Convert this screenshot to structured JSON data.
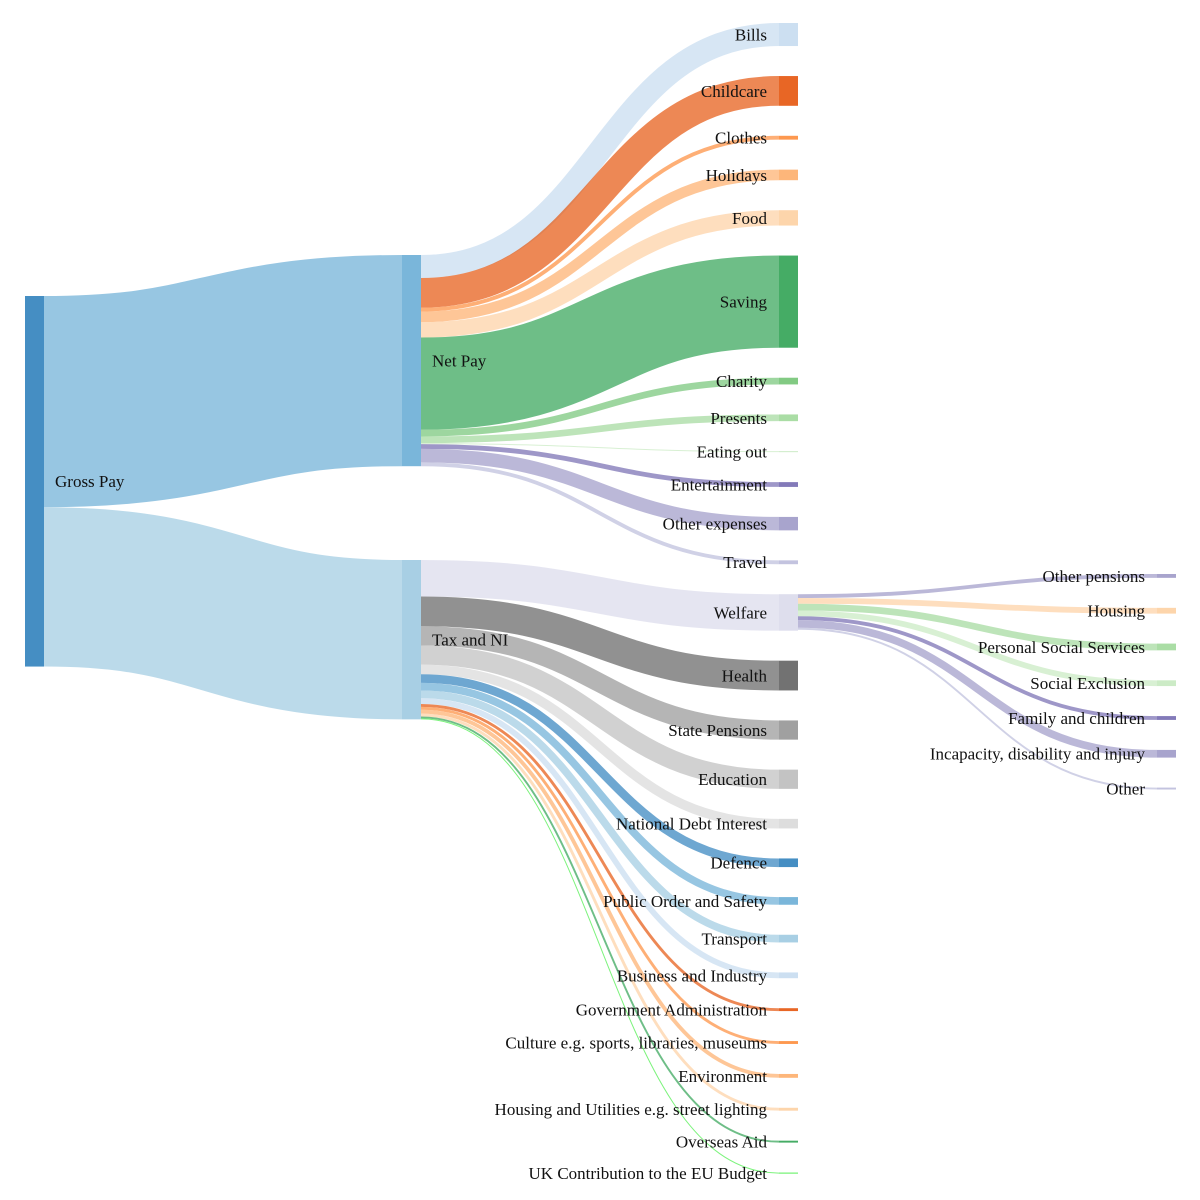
{
  "chart_data": {
    "type": "sankey",
    "title": "",
    "nodes": [
      {
        "name": "Gross Pay",
        "color": "#3182bd"
      },
      {
        "name": "Net Pay",
        "color": "#6baed6"
      },
      {
        "name": "Tax and NI",
        "color": "#9ecae1"
      },
      {
        "name": "Bills",
        "color": "#c6dbef"
      },
      {
        "name": "Childcare",
        "color": "#e6550d"
      },
      {
        "name": "Clothes",
        "color": "#fd8d3c"
      },
      {
        "name": "Holidays",
        "color": "#fdae6b"
      },
      {
        "name": "Food",
        "color": "#fdd0a2"
      },
      {
        "name": "Saving",
        "color": "#31a354"
      },
      {
        "name": "Charity",
        "color": "#74c476"
      },
      {
        "name": "Presents",
        "color": "#a1d99b"
      },
      {
        "name": "Eating out",
        "color": "#c7e9c0"
      },
      {
        "name": "Entertainment",
        "color": "#756bb1"
      },
      {
        "name": "Other expenses",
        "color": "#9e9ac8"
      },
      {
        "name": "Travel",
        "color": "#bcbddc"
      },
      {
        "name": "Welfare",
        "color": "#dadaeb"
      },
      {
        "name": "Health",
        "color": "#636363"
      },
      {
        "name": "State Pensions",
        "color": "#969696"
      },
      {
        "name": "Education",
        "color": "#bdbdbd"
      },
      {
        "name": "National Debt Interest",
        "color": "#d9d9d9"
      },
      {
        "name": "Defence",
        "color": "#3182bd"
      },
      {
        "name": "Public Order and Safety",
        "color": "#6baed6"
      },
      {
        "name": "Transport",
        "color": "#9ecae1"
      },
      {
        "name": "Business and Industry",
        "color": "#c6dbef"
      },
      {
        "name": "Government Administration",
        "color": "#e6550d"
      },
      {
        "name": "Culture e.g. sports, libraries, museums",
        "color": "#fd8d3c"
      },
      {
        "name": "Environment",
        "color": "#fdae6b"
      },
      {
        "name": "Housing and Utilities e.g. street lighting",
        "color": "#fdd0a2"
      },
      {
        "name": "Overseas Aid",
        "color": "#31a354"
      },
      {
        "name": "UK Contribution to the EU Budget",
        "color": "#44ee44"
      },
      {
        "name": "Other pensions",
        "color": "#9e9ac8"
      },
      {
        "name": "Housing",
        "color": "#fdd0a2"
      },
      {
        "name": "Personal Social Services",
        "color": "#a1d99b"
      },
      {
        "name": "Social Exclusion",
        "color": "#c7e9c0"
      },
      {
        "name": "Family and children",
        "color": "#756bb1"
      },
      {
        "name": "Incapacity, disability and injury",
        "color": "#9e9ac8"
      },
      {
        "name": "Other",
        "color": "#bcbddc"
      }
    ],
    "links": [
      {
        "source": "Gross Pay",
        "target": "Net Pay",
        "value": 220
      },
      {
        "source": "Gross Pay",
        "target": "Tax and NI",
        "value": 166
      },
      {
        "source": "Net Pay",
        "target": "Bills",
        "value": 24
      },
      {
        "source": "Net Pay",
        "target": "Childcare",
        "value": 31
      },
      {
        "source": "Net Pay",
        "target": "Clothes",
        "value": 4
      },
      {
        "source": "Net Pay",
        "target": "Holidays",
        "value": 11
      },
      {
        "source": "Net Pay",
        "target": "Food",
        "value": 16
      },
      {
        "source": "Net Pay",
        "target": "Saving",
        "value": 96
      },
      {
        "source": "Net Pay",
        "target": "Charity",
        "value": 7
      },
      {
        "source": "Net Pay",
        "target": "Presents",
        "value": 7
      },
      {
        "source": "Net Pay",
        "target": "Eating out",
        "value": 1
      },
      {
        "source": "Net Pay",
        "target": "Entertainment",
        "value": 5
      },
      {
        "source": "Net Pay",
        "target": "Other expenses",
        "value": 14
      },
      {
        "source": "Net Pay",
        "target": "Travel",
        "value": 4
      },
      {
        "source": "Tax and NI",
        "target": "Welfare",
        "value": 38
      },
      {
        "source": "Tax and NI",
        "target": "Health",
        "value": 31
      },
      {
        "source": "Tax and NI",
        "target": "State Pensions",
        "value": 20
      },
      {
        "source": "Tax and NI",
        "target": "Education",
        "value": 20
      },
      {
        "source": "Tax and NI",
        "target": "National Debt Interest",
        "value": 10
      },
      {
        "source": "Tax and NI",
        "target": "Defence",
        "value": 9
      },
      {
        "source": "Tax and NI",
        "target": "Public Order and Safety",
        "value": 8
      },
      {
        "source": "Tax and NI",
        "target": "Transport",
        "value": 8
      },
      {
        "source": "Tax and NI",
        "target": "Business and Industry",
        "value": 6
      },
      {
        "source": "Tax and NI",
        "target": "Government Administration",
        "value": 3
      },
      {
        "source": "Tax and NI",
        "target": "Culture e.g. sports, libraries, museums",
        "value": 3
      },
      {
        "source": "Tax and NI",
        "target": "Environment",
        "value": 4
      },
      {
        "source": "Tax and NI",
        "target": "Housing and Utilities e.g. street lighting",
        "value": 3
      },
      {
        "source": "Tax and NI",
        "target": "Overseas Aid",
        "value": 2
      },
      {
        "source": "Tax and NI",
        "target": "UK Contribution to the EU Budget",
        "value": 1
      },
      {
        "source": "Welfare",
        "target": "Other pensions",
        "value": 4
      },
      {
        "source": "Welfare",
        "target": "Housing",
        "value": 6
      },
      {
        "source": "Welfare",
        "target": "Personal Social Services",
        "value": 7
      },
      {
        "source": "Welfare",
        "target": "Social Exclusion",
        "value": 6
      },
      {
        "source": "Welfare",
        "target": "Family and children",
        "value": 4
      },
      {
        "source": "Welfare",
        "target": "Incapacity, disability and injury",
        "value": 8
      },
      {
        "source": "Welfare",
        "target": "Other",
        "value": 2
      }
    ]
  }
}
